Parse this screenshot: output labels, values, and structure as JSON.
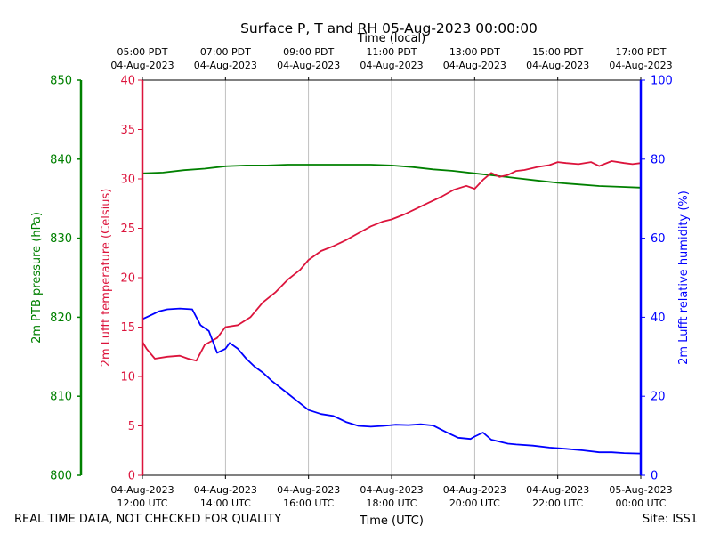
{
  "chart_data": {
    "type": "line",
    "title": "Surface P, T and RH 05-Aug-2023 00:00:00",
    "xlabel_bottom": "Time (UTC)",
    "xlabel_top": "Time (local)",
    "x_range_hours_utc": [
      12,
      24
    ],
    "x_ticks_bottom": [
      {
        "x": 12,
        "line1": "04-Aug-2023",
        "line2": "12:00 UTC"
      },
      {
        "x": 14,
        "line1": "04-Aug-2023",
        "line2": "14:00 UTC"
      },
      {
        "x": 16,
        "line1": "04-Aug-2023",
        "line2": "16:00 UTC"
      },
      {
        "x": 18,
        "line1": "04-Aug-2023",
        "line2": "18:00 UTC"
      },
      {
        "x": 20,
        "line1": "04-Aug-2023",
        "line2": "20:00 UTC"
      },
      {
        "x": 22,
        "line1": "04-Aug-2023",
        "line2": "22:00 UTC"
      },
      {
        "x": 24,
        "line1": "05-Aug-2023",
        "line2": "00:00 UTC"
      }
    ],
    "x_ticks_top": [
      {
        "x": 12,
        "line1": "05:00 PDT",
        "line2": "04-Aug-2023"
      },
      {
        "x": 14,
        "line1": "07:00 PDT",
        "line2": "04-Aug-2023"
      },
      {
        "x": 16,
        "line1": "09:00 PDT",
        "line2": "04-Aug-2023"
      },
      {
        "x": 18,
        "line1": "11:00 PDT",
        "line2": "04-Aug-2023"
      },
      {
        "x": 20,
        "line1": "13:00 PDT",
        "line2": "04-Aug-2023"
      },
      {
        "x": 22,
        "line1": "15:00 PDT",
        "line2": "04-Aug-2023"
      },
      {
        "x": 24,
        "line1": "17:00 PDT",
        "line2": "04-Aug-2023"
      }
    ],
    "axes": {
      "pressure": {
        "label": "2m PTB pressure (hPa)",
        "range": [
          800,
          850
        ],
        "ticks": [
          800,
          810,
          820,
          830,
          840,
          850
        ],
        "color": "#008000"
      },
      "temperature": {
        "label": "2m Lufft temperature (Celsius)",
        "range": [
          0,
          40
        ],
        "ticks": [
          0,
          5,
          10,
          15,
          20,
          25,
          30,
          35,
          40
        ],
        "color": "#dc143c"
      },
      "humidity": {
        "label": "2m Lufft relative humidity (%)",
        "range": [
          0,
          100
        ],
        "ticks": [
          0,
          20,
          40,
          60,
          80,
          100
        ],
        "color": "#0000ff"
      }
    },
    "series": [
      {
        "name": "2m PTB pressure",
        "axis": "pressure",
        "color": "#008000",
        "x": [
          12,
          12.5,
          13,
          13.5,
          14,
          14.5,
          15,
          15.5,
          16,
          16.5,
          17,
          17.5,
          18,
          18.5,
          19,
          19.5,
          20,
          20.5,
          21,
          21.5,
          22,
          22.5,
          23,
          23.5,
          24
        ],
        "values": [
          838.2,
          838.3,
          838.6,
          838.8,
          839.1,
          839.2,
          839.2,
          839.3,
          839.3,
          839.3,
          839.3,
          839.3,
          839.2,
          839.0,
          838.7,
          838.5,
          838.2,
          837.9,
          837.6,
          837.3,
          837.0,
          836.8,
          836.6,
          836.5,
          836.4
        ]
      },
      {
        "name": "2m Lufft temperature",
        "axis": "temperature",
        "color": "#dc143c",
        "x": [
          12,
          12.1,
          12.3,
          12.6,
          12.9,
          13.1,
          13.3,
          13.5,
          13.8,
          14.0,
          14.3,
          14.6,
          14.9,
          15.2,
          15.5,
          15.8,
          16.0,
          16.3,
          16.6,
          16.9,
          17.2,
          17.5,
          17.8,
          18.0,
          18.3,
          18.6,
          18.9,
          19.2,
          19.5,
          19.8,
          20.0,
          20.2,
          20.4,
          20.6,
          20.8,
          21.0,
          21.2,
          21.5,
          21.8,
          22.0,
          22.2,
          22.5,
          22.8,
          23.0,
          23.3,
          23.6,
          23.8,
          24.0
        ],
        "values": [
          13.5,
          12.8,
          11.8,
          12.0,
          12.1,
          11.8,
          11.6,
          13.2,
          13.9,
          15.0,
          15.2,
          16.0,
          17.5,
          18.5,
          19.8,
          20.8,
          21.8,
          22.7,
          23.2,
          23.8,
          24.5,
          25.2,
          25.7,
          25.9,
          26.4,
          27.0,
          27.6,
          28.2,
          28.9,
          29.3,
          29.0,
          29.9,
          30.6,
          30.2,
          30.4,
          30.8,
          30.9,
          31.2,
          31.4,
          31.7,
          31.6,
          31.5,
          31.7,
          31.3,
          31.8,
          31.6,
          31.5,
          31.6
        ]
      },
      {
        "name": "2m Lufft relative humidity",
        "axis": "humidity",
        "color": "#0000ff",
        "x": [
          12,
          12.2,
          12.4,
          12.6,
          12.9,
          13.2,
          13.4,
          13.6,
          13.8,
          14.0,
          14.1,
          14.3,
          14.5,
          14.7,
          14.9,
          15.1,
          15.4,
          15.7,
          16.0,
          16.3,
          16.6,
          16.9,
          17.2,
          17.5,
          17.8,
          18.1,
          18.4,
          18.7,
          19.0,
          19.3,
          19.6,
          19.9,
          20.0,
          20.2,
          20.4,
          20.6,
          20.8,
          21.0,
          21.4,
          21.8,
          22.2,
          22.6,
          23.0,
          23.3,
          23.6,
          24.0
        ],
        "values": [
          39.5,
          40.5,
          41.5,
          42.0,
          42.2,
          42.0,
          38.0,
          36.5,
          31.0,
          32.0,
          33.5,
          32.0,
          29.5,
          27.5,
          26.0,
          24.0,
          21.5,
          19.0,
          16.5,
          15.5,
          15.0,
          13.5,
          12.5,
          12.3,
          12.5,
          12.8,
          12.7,
          12.9,
          12.6,
          11.0,
          9.5,
          9.2,
          9.8,
          10.8,
          9.0,
          8.5,
          8.0,
          7.8,
          7.5,
          7.0,
          6.7,
          6.3,
          5.8,
          5.8,
          5.6,
          5.5
        ]
      }
    ],
    "grid": "vertical lines at each 2-hour tick"
  },
  "footer": {
    "left": "REAL TIME DATA, NOT CHECKED FOR QUALITY",
    "right": "Site: ISS1"
  }
}
